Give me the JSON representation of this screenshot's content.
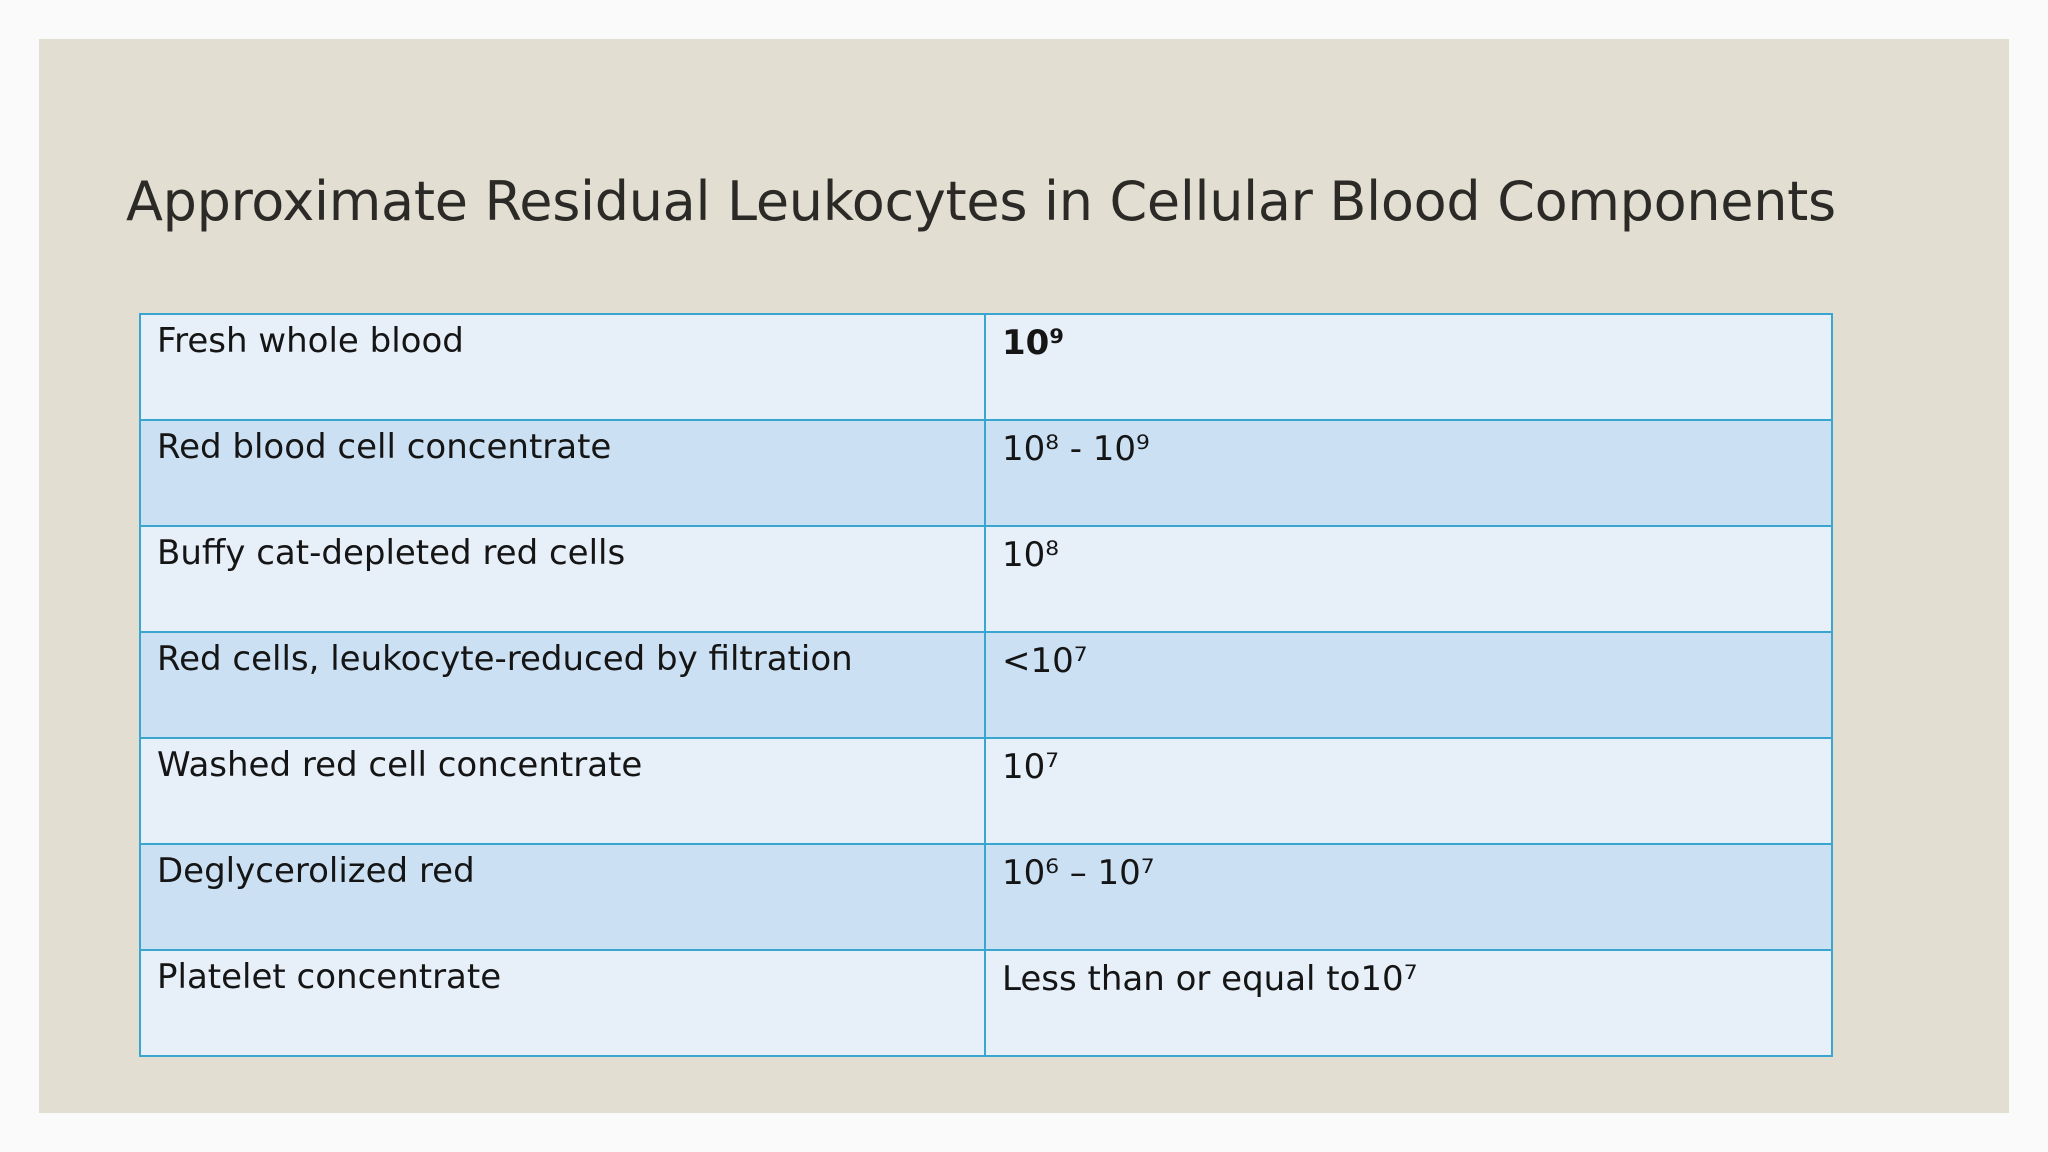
{
  "slide": {
    "title": "Approximate Residual Leukocytes in Cellular Blood Components",
    "colors": {
      "background": "#e2ded2",
      "row_light": "#e7eff9",
      "row_dark": "#cce0f4",
      "border": "#3aa6cf"
    }
  },
  "table": {
    "rows": [
      {
        "component": "Fresh whole blood",
        "leukocytes": "10⁹",
        "bold_value": true
      },
      {
        "component": "Red blood cell concentrate",
        "leukocytes": "10⁸ - 10⁹",
        "bold_value": false
      },
      {
        "component": "Buffy cat-depleted red cells",
        "leukocytes": "10⁸",
        "bold_value": false
      },
      {
        "component": "Red cells, leukocyte-reduced by filtration",
        "leukocytes": "<10⁷",
        "bold_value": false
      },
      {
        "component": "Washed red cell concentrate",
        "leukocytes": "10⁷",
        "bold_value": false
      },
      {
        "component": "Deglycerolized red",
        "leukocytes": "10⁶ – 10⁷",
        "bold_value": false
      },
      {
        "component": "Platelet concentrate",
        "leukocytes": "Less than or equal to10⁷",
        "bold_value": false
      }
    ]
  }
}
